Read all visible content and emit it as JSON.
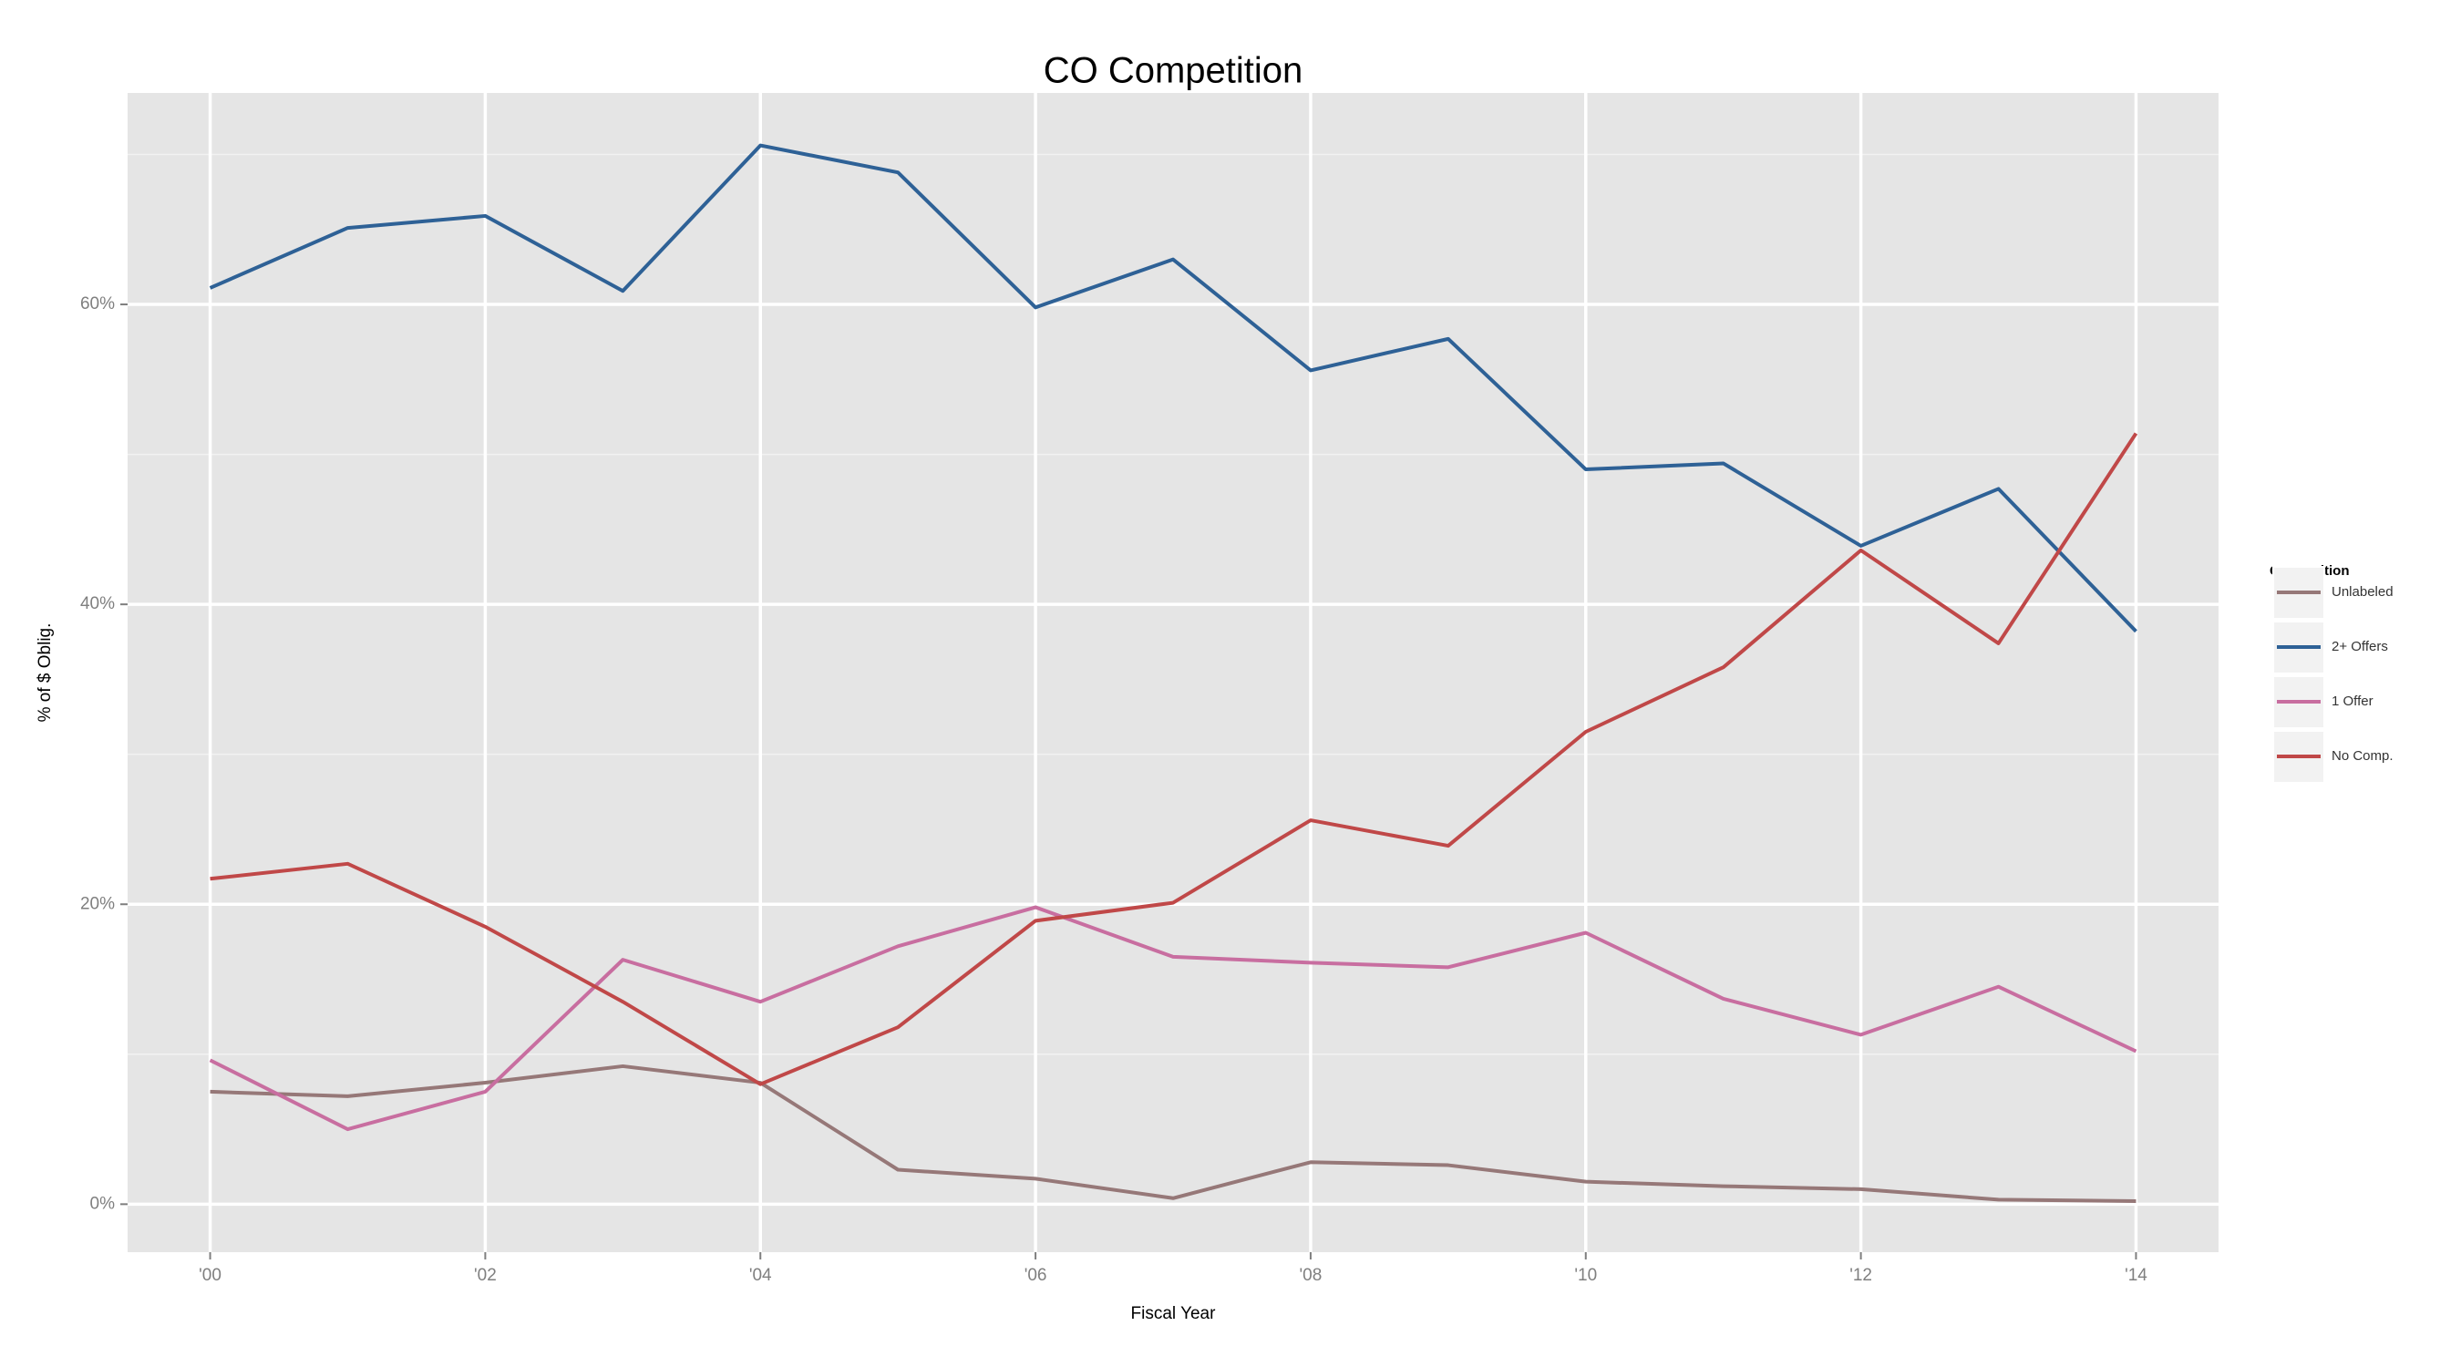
{
  "chart_data": {
    "type": "line",
    "title": "CO Competition",
    "x_label": "Fiscal Year",
    "y_label": "% of $ Oblig.",
    "x": [
      2000,
      2001,
      2002,
      2003,
      2004,
      2005,
      2006,
      2007,
      2008,
      2009,
      2010,
      2011,
      2012,
      2013,
      2014
    ],
    "xlim": [
      1999.4,
      2014.6
    ],
    "xticks": [
      {
        "value": 2000,
        "label": "'00"
      },
      {
        "value": 2002,
        "label": "'02"
      },
      {
        "value": 2004,
        "label": "'04"
      },
      {
        "value": 2006,
        "label": "'06"
      },
      {
        "value": 2008,
        "label": "'08"
      },
      {
        "value": 2010,
        "label": "'10"
      },
      {
        "value": 2012,
        "label": "'12"
      },
      {
        "value": 2014,
        "label": "'14"
      }
    ],
    "ylim": [
      -3.2,
      74.1
    ],
    "yticks": [
      {
        "value": 0,
        "label": "0%"
      },
      {
        "value": 20,
        "label": "20%"
      },
      {
        "value": 40,
        "label": "40%"
      },
      {
        "value": 60,
        "label": "60%"
      }
    ],
    "grid": true,
    "legend_title": "Competition",
    "legend_position": "right",
    "series": [
      {
        "name": "Unlabeled",
        "color": "#967878",
        "values": [
          7.5,
          7.2,
          8.1,
          9.2,
          8.1,
          2.3,
          1.7,
          0.4,
          2.8,
          2.6,
          1.5,
          1.2,
          1.0,
          0.3,
          0.2
        ]
      },
      {
        "name": "2+ Offers",
        "color": "#2e6196",
        "values": [
          61.1,
          65.1,
          65.9,
          60.9,
          70.6,
          68.8,
          59.8,
          63.0,
          55.6,
          57.7,
          49.0,
          49.4,
          43.9,
          47.7,
          38.2
        ]
      },
      {
        "name": "1 Offer",
        "color": "#c86ea0",
        "values": [
          9.6,
          5.0,
          7.5,
          16.3,
          13.5,
          17.2,
          19.8,
          16.5,
          16.1,
          15.8,
          18.1,
          13.7,
          11.3,
          14.5,
          10.2
        ]
      },
      {
        "name": "No Comp.",
        "color": "#c04848",
        "values": [
          21.7,
          22.7,
          18.5,
          13.5,
          8.0,
          11.8,
          18.9,
          20.1,
          25.6,
          23.9,
          31.5,
          35.8,
          43.6,
          37.4,
          51.4
        ]
      }
    ]
  }
}
